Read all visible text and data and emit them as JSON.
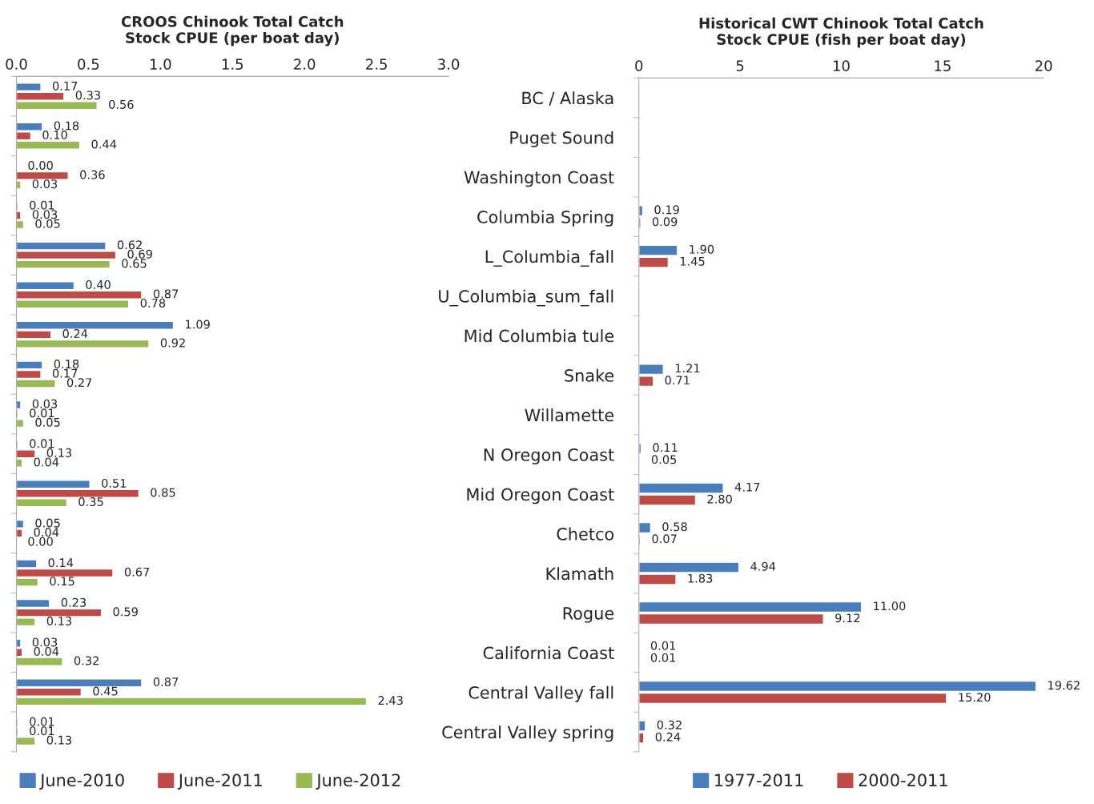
{
  "chart_data": [
    {
      "type": "bar",
      "orientation": "horizontal",
      "title": "CROOS Chinook Total Catch\nStock CPUE (per boat day)",
      "categories": [
        null,
        null,
        null,
        null,
        null,
        null,
        null,
        null,
        null,
        null,
        null,
        null,
        null,
        null,
        null,
        null,
        null
      ],
      "xlim": [
        0,
        3
      ],
      "xticks": [
        {
          "value": 0,
          "label": "0.0"
        },
        {
          "value": 0.5,
          "label": "0.5"
        },
        {
          "value": 1,
          "label": "1.0"
        },
        {
          "value": 1.5,
          "label": "1.5"
        },
        {
          "value": 2,
          "label": "2.0"
        },
        {
          "value": 2.5,
          "label": "2.5"
        },
        {
          "value": 3,
          "label": "3.0"
        }
      ],
      "tick_labels": "x",
      "legend": "bottom",
      "grid": false,
      "series": [
        {
          "name": "June-2010",
          "color": "#4a7ebb",
          "values": [
            0.17,
            0.18,
            0.0,
            0.01,
            0.62,
            0.4,
            1.09,
            0.18,
            0.03,
            0.01,
            0.51,
            0.05,
            0.14,
            0.23,
            0.03,
            0.87,
            0.01
          ],
          "value_labels": [
            "0.17",
            "0.18",
            "0.00",
            "0.01",
            "0.62",
            "0.40",
            "1.09",
            "0.18",
            "0.03",
            "0.01",
            "0.51",
            "0.05",
            "0.14",
            "0.23",
            "0.03",
            "0.87",
            "0.01"
          ]
        },
        {
          "name": "June-2011",
          "color": "#be4b48",
          "values": [
            0.33,
            0.1,
            0.36,
            0.03,
            0.69,
            0.87,
            0.24,
            0.17,
            0.01,
            0.13,
            0.85,
            0.04,
            0.67,
            0.59,
            0.04,
            0.45,
            0.01
          ],
          "value_labels": [
            "0.33",
            "0.10",
            "0.36",
            "0.03",
            "0.69",
            "0.87",
            "0.24",
            "0.17",
            "0.01",
            "0.13",
            "0.85",
            "0.04",
            "0.67",
            "0.59",
            "0.04",
            "0.45",
            "0.01"
          ]
        },
        {
          "name": "June-2012",
          "color": "#98b954",
          "values": [
            0.56,
            0.44,
            0.03,
            0.05,
            0.65,
            0.78,
            0.92,
            0.27,
            0.05,
            0.04,
            0.35,
            0.0,
            0.15,
            0.13,
            0.32,
            2.43,
            0.13
          ],
          "value_labels": [
            "0.56",
            "0.44",
            "0.03",
            "0.05",
            "0.65",
            "0.78",
            "0.92",
            "0.27",
            "0.05",
            "0.04",
            "0.35",
            "0.00",
            "0.15",
            "0.13",
            "0.32",
            "2.43",
            "0.13"
          ]
        }
      ]
    },
    {
      "type": "bar",
      "orientation": "horizontal",
      "title": "Historical CWT Chinook Total Catch\nStock CPUE (fish per boat day)",
      "categories": [
        "BC / Alaska",
        "Puget Sound",
        "Washington Coast",
        "Columbia Spring",
        "L_Columbia_fall",
        "U_Columbia_sum_fall",
        "Mid Columbia tule",
        "Snake",
        "Willamette",
        "N Oregon Coast",
        "Mid Oregon Coast",
        "Chetco",
        "Klamath",
        "Rogue",
        "California Coast",
        "Central Valley fall",
        "Central Valley spring"
      ],
      "xlim": [
        0,
        20
      ],
      "xticks": [
        0,
        5,
        10,
        15,
        20
      ],
      "legend": "bottom",
      "grid": false,
      "series": [
        {
          "name": "1977-2011",
          "color": "#4a7ebb",
          "values": [
            null,
            null,
            null,
            0.19,
            1.9,
            null,
            null,
            1.21,
            null,
            0.11,
            4.17,
            0.58,
            4.94,
            11.0,
            0.01,
            19.62,
            0.32
          ],
          "value_labels": [
            null,
            null,
            null,
            "0.19",
            "1.90",
            null,
            null,
            "1.21",
            null,
            "0.11",
            "4.17",
            "0.58",
            "4.94",
            "11.00",
            "0.01",
            "19.62",
            "0.32"
          ]
        },
        {
          "name": "2000-2011",
          "color": "#be4b48",
          "values": [
            null,
            null,
            null,
            0.09,
            1.45,
            null,
            null,
            0.71,
            null,
            0.05,
            2.8,
            0.07,
            1.83,
            9.12,
            0.01,
            15.2,
            0.24
          ],
          "value_labels": [
            null,
            null,
            null,
            "0.09",
            "1.45",
            null,
            null,
            "0.71",
            null,
            "0.05",
            "2.80",
            "0.07",
            "1.83",
            "9.12",
            "0.01",
            "15.20",
            "0.24"
          ]
        }
      ]
    }
  ]
}
